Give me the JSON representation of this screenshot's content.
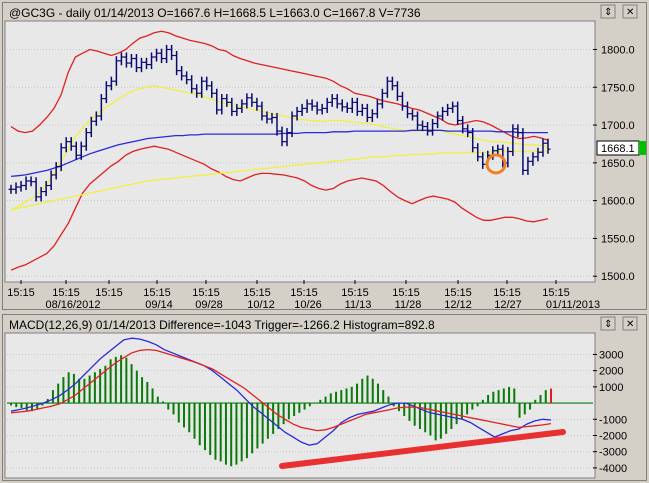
{
  "price_header": "@GC3G - daily 01/14/2013 O=1667.6 H=1668.5 L=1663.0 C=1667.8 V=7736",
  "macd_header": "MACD(12,26,9) 01/14/2013 Difference=-1043 Trigger=-1266.2 Histogram=892.8",
  "last_price_label": "1668.1",
  "colors": {
    "plot_bg": "#e8e8e8",
    "bars": "#0a0a6e",
    "bollinger": "#e02020",
    "sma_fast": "#f0f040",
    "sma_slow": "#f0f040",
    "ma_blue": "#2a2ad8",
    "macd_hist": "#0a7a0a",
    "macd_line": "#2a2ad8",
    "trigger_line": "#e02020",
    "annotation_circle": "#f08020",
    "trend_line": "#e83030"
  },
  "window_buttons": {
    "arrows": "⇕",
    "close": "✕"
  },
  "chart_data": [
    {
      "type": "ohlc",
      "title": "@GC3G - daily 01/14/2013 O=1667.6 H=1668.5 L=1663.0 C=1667.8 V=7736",
      "yticks": [
        1500,
        1550,
        1600,
        1650,
        1700,
        1750,
        1800
      ],
      "ylim": [
        1495,
        1835
      ],
      "x_time_labels": [
        "15:15",
        "15:15",
        "15:15",
        "15:15",
        "15:15",
        "15:15",
        "15:15",
        "15:15",
        "15:15",
        "15:15",
        "15:15",
        "15:15"
      ],
      "x_date_labels": [
        "08/16/2012",
        "",
        "09/14",
        "09/28",
        "10/12",
        "10/26",
        "11/13",
        "11/28",
        "12/12",
        "12/27",
        "01/11/2013"
      ],
      "bars_close": [
        1615,
        1618,
        1620,
        1626,
        1625,
        1605,
        1612,
        1620,
        1634,
        1645,
        1670,
        1678,
        1672,
        1660,
        1672,
        1690,
        1705,
        1712,
        1735,
        1752,
        1758,
        1785,
        1790,
        1782,
        1788,
        1776,
        1783,
        1780,
        1790,
        1795,
        1788,
        1800,
        1792,
        1772,
        1765,
        1760,
        1748,
        1742,
        1758,
        1752,
        1742,
        1720,
        1735,
        1730,
        1718,
        1722,
        1728,
        1736,
        1730,
        1725,
        1712,
        1708,
        1710,
        1692,
        1678,
        1690,
        1712,
        1718,
        1722,
        1728,
        1725,
        1720,
        1722,
        1730,
        1735,
        1728,
        1724,
        1722,
        1730,
        1718,
        1722,
        1710,
        1715,
        1728,
        1742,
        1758,
        1752,
        1738,
        1725,
        1715,
        1712,
        1700,
        1698,
        1692,
        1702,
        1712,
        1718,
        1722,
        1725,
        1706,
        1695,
        1690,
        1670,
        1658,
        1648,
        1660,
        1666,
        1668,
        1650,
        1665,
        1695,
        1690,
        1640,
        1652,
        1658,
        1664,
        1676,
        1668
      ],
      "series": [
        {
          "name": "",
          "values": [
            1698,
            1692,
            1690,
            1692,
            1700,
            1710,
            1722,
            1740,
            1770,
            1790,
            1795,
            1800,
            1798,
            1795,
            1792,
            1795,
            1800,
            1808,
            1815,
            1818,
            1822,
            1824,
            1822,
            1818,
            1815,
            1812,
            1810,
            1808,
            1805,
            1800,
            1798,
            1792,
            1788,
            1785,
            1782,
            1780,
            1778,
            1776,
            1774,
            1772,
            1770,
            1768,
            1766,
            1764,
            1762,
            1758,
            1752,
            1748,
            1742,
            1740,
            1738,
            1735,
            1732,
            1730,
            1728,
            1725,
            1722,
            1720,
            1716,
            1712,
            1708,
            1702,
            1700,
            1702,
            1704,
            1706,
            1704,
            1700,
            1695,
            1690,
            1685,
            1682,
            1683,
            1685,
            1683,
            1680
          ]
        },
        {
          "name": "",
          "values": [
            1508,
            1512,
            1515,
            1520,
            1525,
            1530,
            1540,
            1555,
            1570,
            1590,
            1610,
            1622,
            1630,
            1638,
            1646,
            1652,
            1660,
            1665,
            1668,
            1670,
            1672,
            1670,
            1668,
            1664,
            1660,
            1656,
            1652,
            1648,
            1642,
            1638,
            1632,
            1628,
            1626,
            1630,
            1634,
            1636,
            1636,
            1635,
            1634,
            1632,
            1630,
            1626,
            1620,
            1616,
            1614,
            1616,
            1622,
            1626,
            1628,
            1630,
            1628,
            1626,
            1620,
            1612,
            1605,
            1600,
            1596,
            1600,
            1604,
            1606,
            1604,
            1602,
            1598,
            1590,
            1584,
            1578,
            1574,
            1574,
            1576,
            1578,
            1578,
            1576,
            1573,
            1572,
            1574,
            1576
          ]
        },
        {
          "name": "",
          "values": [
            1588,
            1592,
            1598,
            1604,
            1612,
            1622,
            1636,
            1652,
            1668,
            1684,
            1696,
            1706,
            1714,
            1722,
            1728,
            1734,
            1740,
            1745,
            1748,
            1750,
            1752,
            1750,
            1748,
            1746,
            1744,
            1742,
            1740,
            1737,
            1734,
            1731,
            1728,
            1726,
            1724,
            1722,
            1720,
            1718,
            1716,
            1714,
            1712,
            1710,
            1708,
            1707,
            1706,
            1705,
            1705,
            1706,
            1706,
            1705,
            1704,
            1703,
            1702,
            1700,
            1698,
            1696,
            1694,
            1693,
            1692,
            1692,
            1693,
            1694,
            1693,
            1690,
            1688,
            1686,
            1684,
            1682,
            1680,
            1678,
            1678,
            1677,
            1676,
            1675,
            1674,
            1674,
            1673,
            1672
          ]
        },
        {
          "name": "",
          "values": [
            1588,
            1590,
            1592,
            1594,
            1596,
            1598,
            1600,
            1602,
            1604,
            1606,
            1608,
            1610,
            1612,
            1614,
            1616,
            1618,
            1620,
            1622,
            1624,
            1626,
            1627,
            1628,
            1629,
            1630,
            1631,
            1632,
            1633,
            1634,
            1635,
            1636,
            1637,
            1638,
            1639,
            1640,
            1641,
            1642,
            1643,
            1644,
            1645,
            1646,
            1647,
            1648,
            1649,
            1650,
            1651,
            1652,
            1653,
            1654,
            1655,
            1656,
            1657,
            1658,
            1658,
            1659,
            1660,
            1660,
            1661,
            1661,
            1662,
            1662,
            1663,
            1663,
            1663,
            1663,
            1664,
            1664,
            1664,
            1664,
            1665,
            1665,
            1665,
            1665,
            1665,
            1665,
            1665,
            1665
          ]
        },
        {
          "name": "",
          "values": [
            1632,
            1633,
            1634,
            1636,
            1638,
            1640,
            1643,
            1646,
            1650,
            1654,
            1658,
            1662,
            1665,
            1668,
            1671,
            1674,
            1676,
            1678,
            1680,
            1682,
            1683,
            1684,
            1685,
            1686,
            1686,
            1687,
            1687,
            1688,
            1688,
            1688,
            1688,
            1688,
            1688,
            1688,
            1688,
            1688,
            1688,
            1688,
            1689,
            1689,
            1689,
            1690,
            1690,
            1690,
            1690,
            1691,
            1691,
            1691,
            1692,
            1692,
            1692,
            1692,
            1692,
            1692,
            1692,
            1692,
            1693,
            1693,
            1693,
            1693,
            1693,
            1692,
            1692,
            1692,
            1692,
            1692,
            1692,
            1692,
            1691,
            1691,
            1691,
            1690,
            1690,
            1690,
            1690,
            1690
          ]
        }
      ]
    },
    {
      "type": "bar+line",
      "title": "MACD(12,26,9) 01/14/2013 Difference=-1043 Trigger=-1266.2 Histogram=892.8",
      "yticks": [
        3000,
        2000,
        1000,
        -1000,
        -2000,
        -3000,
        -4000
      ],
      "ylim": [
        -4500,
        4200
      ],
      "histogram": [
        -150,
        -250,
        -300,
        -450,
        -500,
        -350,
        -150,
        250,
        800,
        1200,
        1600,
        1900,
        1800,
        1500,
        1500,
        1700,
        1900,
        2100,
        2300,
        2700,
        2850,
        2950,
        2800,
        2400,
        2000,
        1600,
        1300,
        900,
        400,
        100,
        -400,
        -700,
        -1200,
        -1500,
        -1800,
        -2200,
        -2600,
        -2900,
        -3200,
        -3500,
        -3600,
        -3800,
        -3900,
        -3800,
        -3600,
        -3400,
        -3100,
        -2800,
        -2500,
        -2200,
        -1900,
        -1600,
        -1300,
        -1000,
        -800,
        -600,
        -400,
        -200,
        0,
        200,
        400,
        600,
        700,
        800,
        900,
        1000,
        1200,
        1500,
        1700,
        1500,
        1200,
        800,
        400,
        -200,
        -500,
        -800,
        -1100,
        -1400,
        -1600,
        -1800,
        -2000,
        -2300,
        -2200,
        -1900,
        -1600,
        -1300,
        -1000,
        -700,
        -400,
        -200,
        200,
        500,
        700,
        800,
        900,
        1000,
        900,
        -900,
        -700,
        -400,
        200,
        500,
        800,
        893
      ],
      "series": [
        {
          "name": "",
          "values": [
            -500,
            -400,
            -300,
            -150,
            0,
            200,
            450,
            800,
            1200,
            1700,
            2200,
            2700,
            3100,
            3500,
            3900,
            4000,
            3950,
            3800,
            3600,
            3300,
            3100,
            2900,
            2700,
            2500,
            2300,
            2000,
            1600,
            1200,
            800,
            300,
            -200,
            -600,
            -1000,
            -1400,
            -1800,
            -2100,
            -2400,
            -2600,
            -2500,
            -2100,
            -1700,
            -1200,
            -900,
            -700,
            -600,
            -500,
            -300,
            -100,
            0,
            0,
            -200,
            -400,
            -600,
            -700,
            -800,
            -900,
            -1000,
            -1200,
            -1500,
            -1800,
            -2100,
            -1900,
            -1700,
            -1600,
            -1300,
            -1100,
            -1000,
            -1043
          ]
        },
        {
          "name": "",
          "values": [
            -600,
            -550,
            -500,
            -400,
            -300,
            -200,
            -50,
            200,
            500,
            900,
            1300,
            1700,
            2100,
            2500,
            2800,
            3100,
            3250,
            3300,
            3250,
            3100,
            2950,
            2800,
            2650,
            2500,
            2300,
            2100,
            1800,
            1500,
            1200,
            900,
            500,
            100,
            -300,
            -700,
            -1000,
            -1300,
            -1500,
            -1600,
            -1700,
            -1650,
            -1500,
            -1300,
            -1100,
            -900,
            -700,
            -600,
            -500,
            -400,
            -300,
            -250,
            -250,
            -300,
            -400,
            -500,
            -600,
            -700,
            -800,
            -900,
            -1000,
            -1100,
            -1200,
            -1300,
            -1400,
            -1500,
            -1450,
            -1400,
            -1350,
            -1266
          ]
        }
      ]
    }
  ]
}
